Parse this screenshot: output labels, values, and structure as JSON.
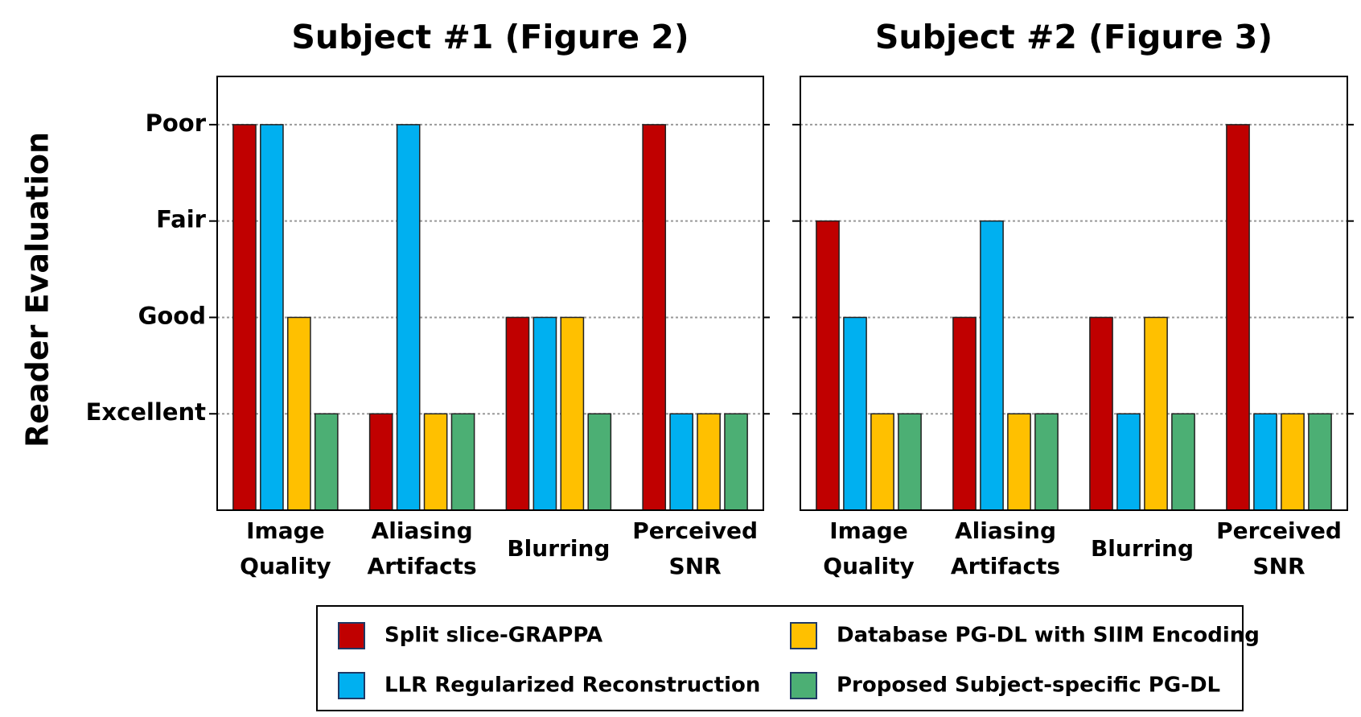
{
  "chart_data": [
    {
      "type": "bar",
      "title": "Subject #1 (Figure 2)",
      "ylabel": "Reader Evaluation",
      "categories": [
        "Image Quality",
        "Aliasing Artifacts",
        "Blurring",
        "Perceived SNR"
      ],
      "series": [
        {
          "name": "Split slice-GRAPPA",
          "color": "#c00000",
          "values": [
            4,
            1,
            2,
            4
          ]
        },
        {
          "name": "LLR Regularized Reconstruction",
          "color": "#00b0f0",
          "values": [
            4,
            4,
            2,
            1
          ]
        },
        {
          "name": "Database PG-DL with SIIM Encoding",
          "color": "#ffc000",
          "values": [
            2,
            1,
            2,
            1
          ]
        },
        {
          "name": "Proposed Subject-specific PG-DL",
          "color": "#4caf74",
          "values": [
            1,
            1,
            1,
            1
          ]
        }
      ],
      "ylim": [
        0,
        4.5
      ],
      "yticks": [
        {
          "value": 1,
          "label": "Excellent"
        },
        {
          "value": 2,
          "label": "Good"
        },
        {
          "value": 3,
          "label": "Fair"
        },
        {
          "value": 4,
          "label": "Poor"
        }
      ],
      "grid": true
    },
    {
      "type": "bar",
      "title": "Subject #2 (Figure 3)",
      "categories": [
        "Image Quality",
        "Aliasing Artifacts",
        "Blurring",
        "Perceived SNR"
      ],
      "series": [
        {
          "color": "#c00000",
          "values": [
            3,
            2,
            2,
            4
          ]
        },
        {
          "color": "#00b0f0",
          "values": [
            2,
            3,
            1,
            1
          ]
        },
        {
          "color": "#ffc000",
          "values": [
            1,
            1,
            2,
            1
          ]
        },
        {
          "color": "#4caf74",
          "values": [
            1,
            1,
            1,
            1
          ]
        }
      ],
      "ylim": [
        0,
        4.5
      ],
      "yticks": [
        1,
        2,
        3,
        4
      ],
      "grid": true
    }
  ]
}
